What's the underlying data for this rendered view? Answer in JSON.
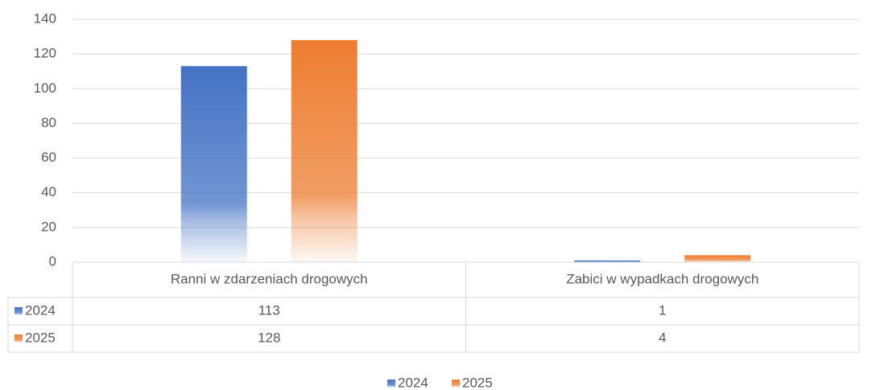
{
  "chart_data": {
    "type": "bar",
    "categories": [
      "Ranni w zdarzeniach drogowych",
      "Zabici w wypadkach drogowych"
    ],
    "series": [
      {
        "name": "2024",
        "color": "#4472c4",
        "values": [
          113,
          1
        ]
      },
      {
        "name": "2025",
        "color": "#ed7d31",
        "values": [
          128,
          4
        ]
      }
    ],
    "ylim": [
      0,
      140
    ],
    "yticks": [
      0,
      20,
      40,
      60,
      80,
      100,
      120,
      140
    ],
    "grid": true,
    "legend": "bottom"
  }
}
